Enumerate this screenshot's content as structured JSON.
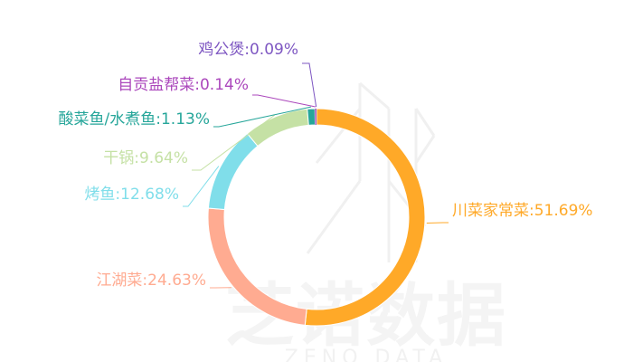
{
  "chart_data": {
    "type": "pie",
    "variant": "donut",
    "slices": [
      {
        "label": "川菜家常菜",
        "value": 51.69,
        "display": "川菜家常菜:51.69%",
        "color": "#ffa928"
      },
      {
        "label": "江湖菜",
        "value": 24.63,
        "display": "江湖菜:24.63%",
        "color": "#ffab91"
      },
      {
        "label": "烤鱼",
        "value": 12.68,
        "display": "烤鱼:12.68%",
        "color": "#80deea"
      },
      {
        "label": "干锅",
        "value": 9.64,
        "display": "干锅:9.64%",
        "color": "#c5e1a5"
      },
      {
        "label": "酸菜鱼/水煮鱼",
        "value": 1.13,
        "display": "酸菜鱼/水煮鱼:1.13%",
        "color": "#26a69a"
      },
      {
        "label": "自贡盐帮菜",
        "value": 0.14,
        "display": "自贡盐帮菜:0.14%",
        "color": "#ab47bc"
      },
      {
        "label": "鸡公煲",
        "value": 0.09,
        "display": "鸡公煲:0.09%",
        "color": "#7e57c2"
      }
    ]
  },
  "watermark": {
    "text": "芝诺数据",
    "sub": "ZENO DATA"
  }
}
